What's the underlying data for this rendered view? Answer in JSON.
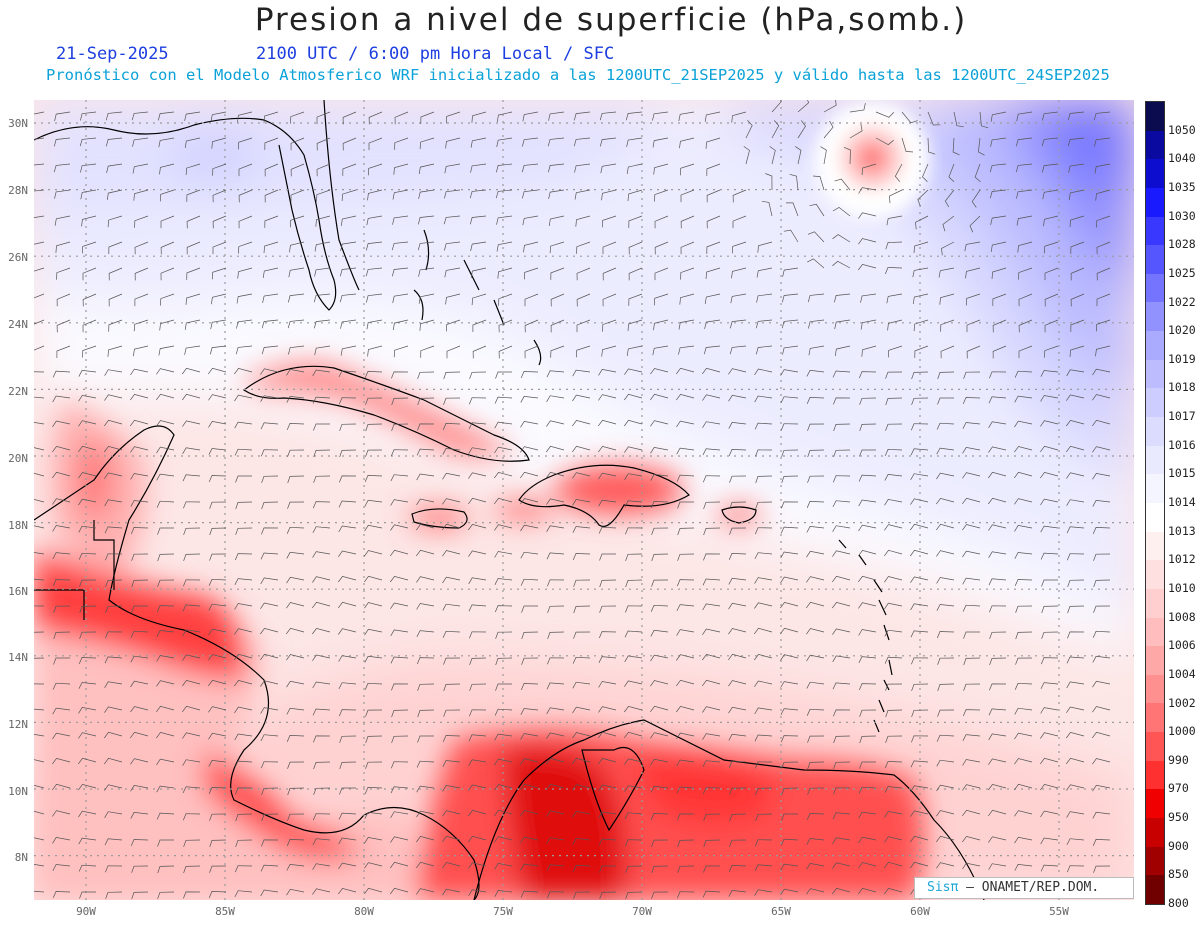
{
  "title": "Presion a nivel de superficie (hPa,somb.)",
  "date": "21-Sep-2025",
  "time_label": "2100 UTC / 6:00 pm Hora Local / SFC",
  "forecast_line": "Pronóstico con el Modelo Atmosferico WRF inicializado a las 1200UTC_21SEP2025 y válido hasta las  1200UTC_24SEP2025",
  "credit": {
    "logo": "Sisπ",
    "text": "– ONAMET/REP.DOM."
  },
  "lat_labels": [
    "30N",
    "28N",
    "26N",
    "24N",
    "22N",
    "20N",
    "18N",
    "16N",
    "14N",
    "12N",
    "10N",
    "8N"
  ],
  "lon_labels": [
    "90W",
    "85W",
    "80W",
    "75W",
    "70W",
    "65W",
    "60W",
    "55W"
  ],
  "colorbar": {
    "labels": [
      "1050",
      "1040",
      "1035",
      "1030",
      "1028",
      "1025",
      "1022",
      "1020",
      "1019",
      "1018",
      "1017",
      "1016",
      "1015",
      "1014",
      "1013",
      "1012",
      "1010",
      "1008",
      "1006",
      "1004",
      "1002",
      "1000",
      "990",
      "970",
      "950",
      "900",
      "850",
      "800"
    ],
    "colors": [
      "#0b0b50",
      "#0a0aa0",
      "#0d0dd0",
      "#1a1aff",
      "#3838ff",
      "#5656ff",
      "#7474ff",
      "#9292ff",
      "#aaaaff",
      "#bcbcff",
      "#cdcdff",
      "#dcdcff",
      "#eaeaff",
      "#f5f5ff",
      "#ffffff",
      "#fff0f0",
      "#ffe0e0",
      "#ffcfcf",
      "#ffbdbd",
      "#ffa8a8",
      "#ff9090",
      "#ff7474",
      "#ff5555",
      "#ff3030",
      "#f00000",
      "#c80000",
      "#a00000",
      "#700000"
    ]
  },
  "colors": {
    "land_outline": "#000000",
    "grid": "#9a9a9a",
    "wind_barb": "#555555"
  }
}
